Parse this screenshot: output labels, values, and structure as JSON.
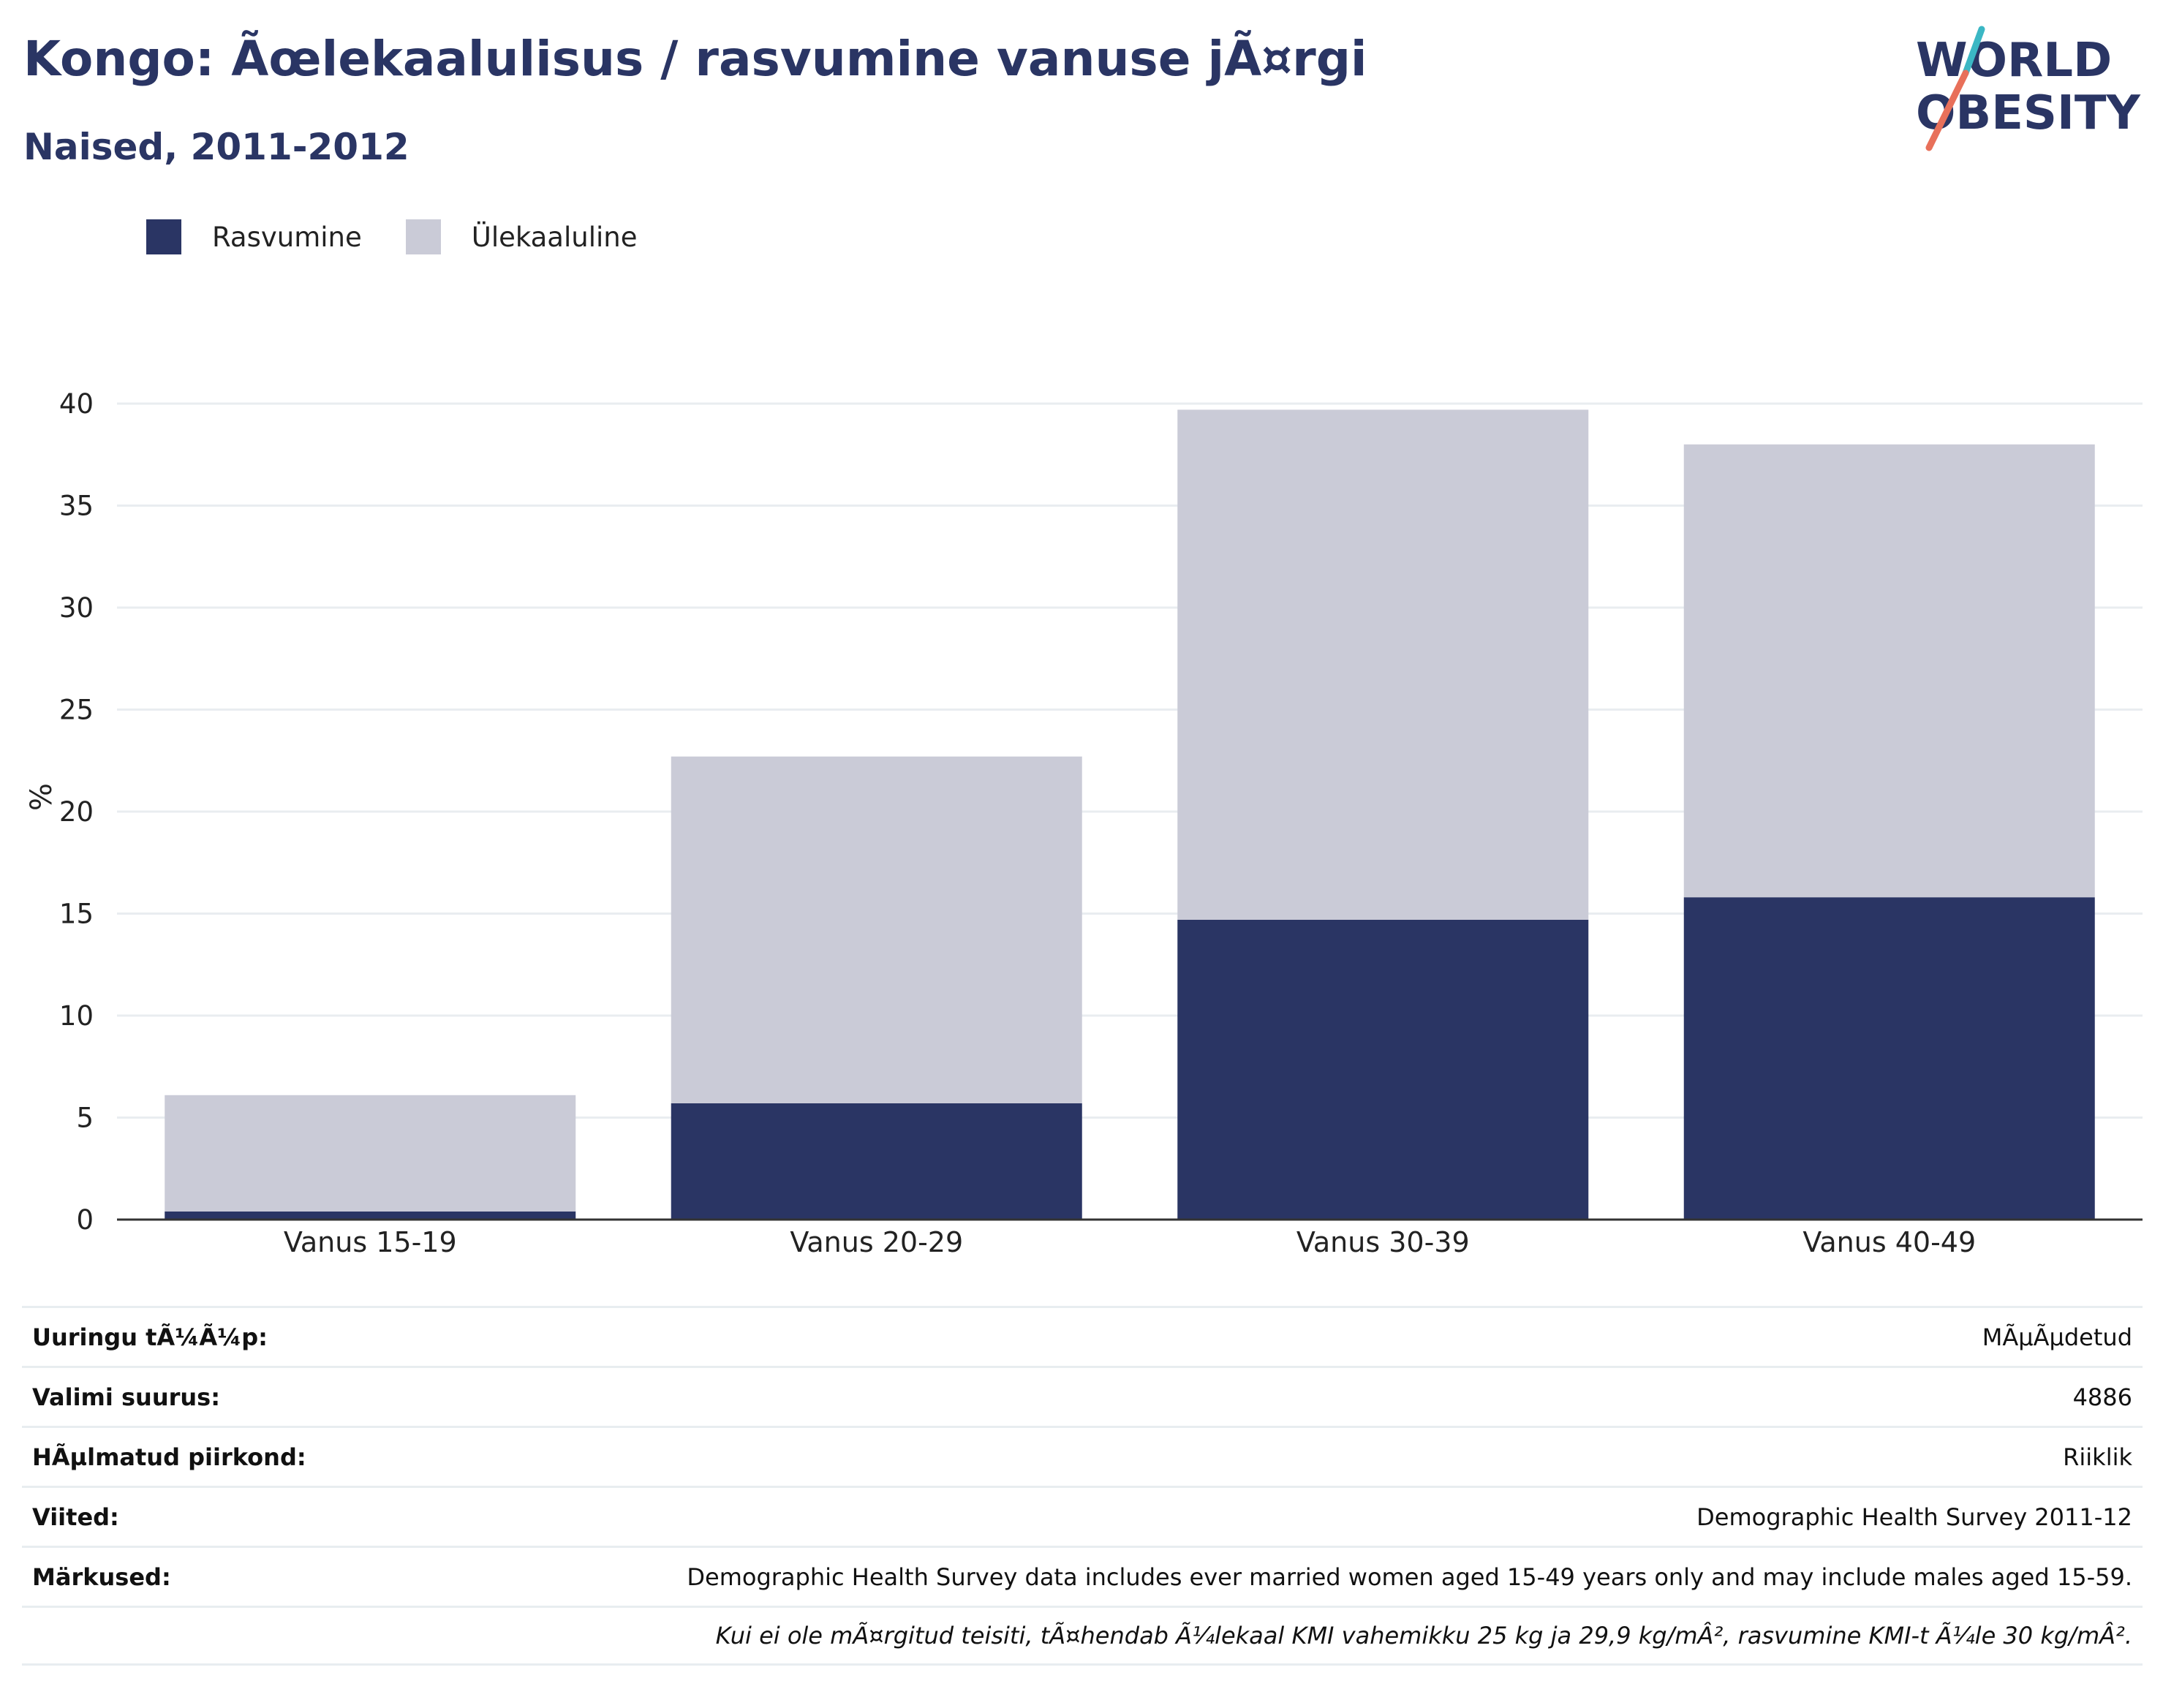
{
  "header": {
    "title": "Kongo: Ãœlekaalulisus / rasvumine vanuse jÃ¤rgi",
    "subtitle": "Naised, 2011-2012"
  },
  "logo": {
    "line1": "WORLD",
    "line2": "OBESITY"
  },
  "legend": [
    {
      "label": "Rasvumine",
      "color": "#2a3564"
    },
    {
      "label": "Ülekaaluline",
      "color": "#cacbd7"
    }
  ],
  "chart_data": {
    "type": "bar",
    "stacked": true,
    "categories": [
      "Vanus 15-19",
      "Vanus 20-29",
      "Vanus 30-39",
      "Vanus 40-49"
    ],
    "series": [
      {
        "name": "Rasvumine",
        "color": "#2a3564",
        "values": [
          0.4,
          5.7,
          14.7,
          15.8
        ]
      },
      {
        "name": "Ülekaaluline",
        "color": "#cacbd7",
        "values": [
          5.7,
          17.0,
          25.0,
          22.2
        ]
      }
    ],
    "totals": [
      6.1,
      22.7,
      39.7,
      38.0
    ],
    "ylabel": "%",
    "ylim": [
      0,
      40
    ],
    "yticks": [
      "0",
      "5",
      "10",
      "15",
      "20",
      "25",
      "30",
      "35",
      "40"
    ],
    "grid": true,
    "legend_position": "top-left"
  },
  "info": [
    {
      "key": "Uuringu tÃ¼Ã¼p:",
      "value": "MÃµÃµdetud"
    },
    {
      "key": "Valimi suurus:",
      "value": "4886"
    },
    {
      "key": "HÃµlmatud piirkond:",
      "value": "Riiklik"
    },
    {
      "key": "Viited:",
      "value": "Demographic Health Survey 2011-12"
    },
    {
      "key": "Märkused:",
      "value": "Demographic Health Survey data includes ever married women aged 15-49 years only and may include males aged 15-59."
    },
    {
      "key": "",
      "value": "Kui ei ole mÃ¤rgitud teisiti, tÃ¤hendab Ã¼lekaal KMI vahemikku 25 kg ja 29,9 kg/mÂ², rasvumine KMI-t Ã¼le 30 kg/mÂ²."
    }
  ]
}
